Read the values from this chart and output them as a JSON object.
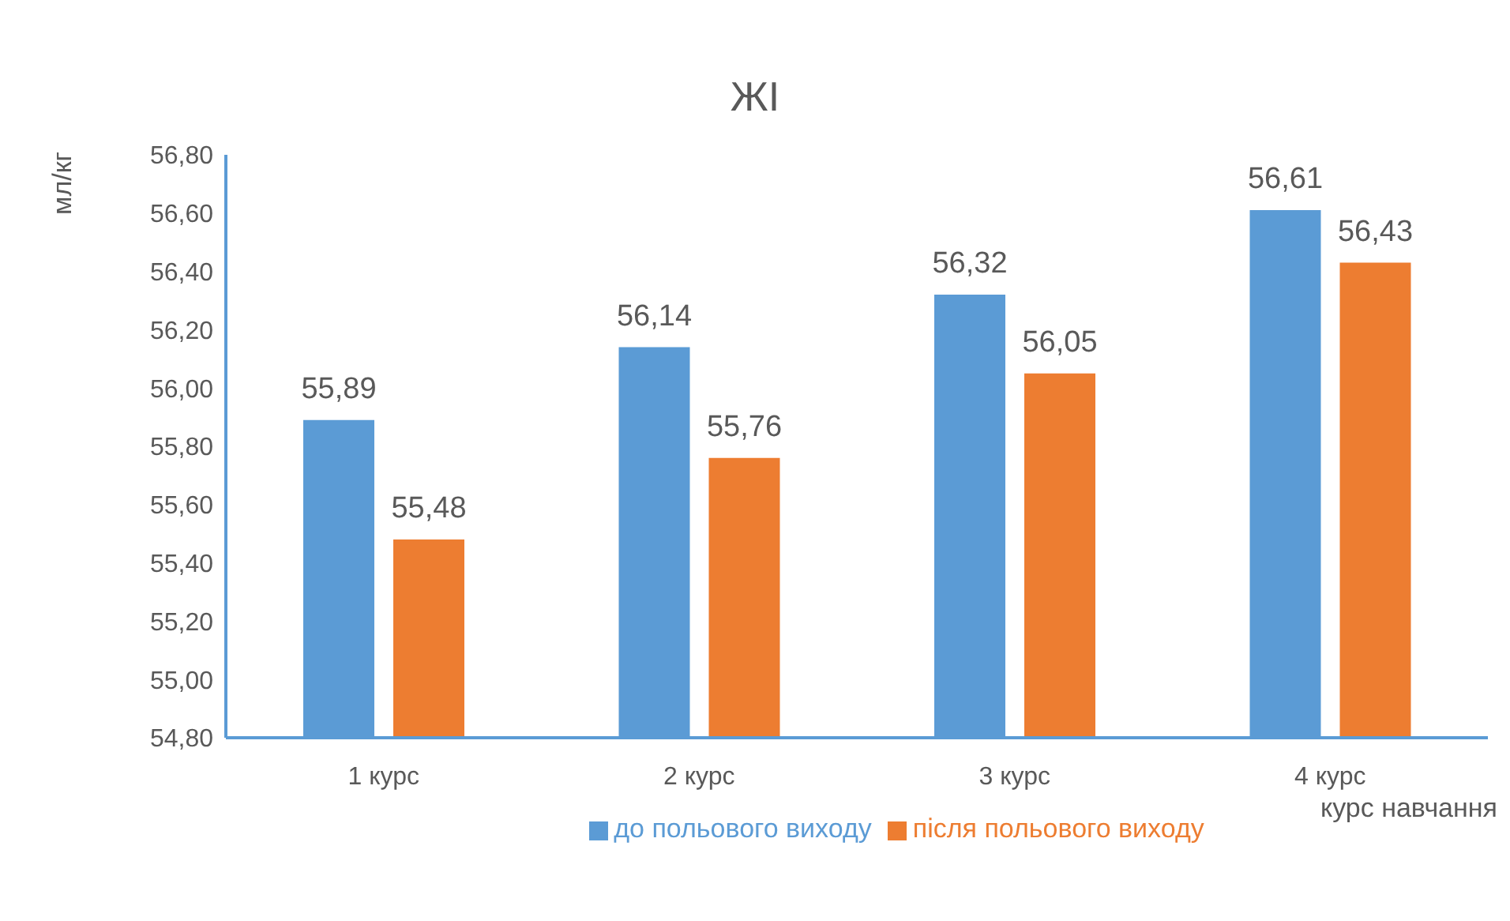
{
  "chart_data": {
    "type": "bar",
    "title": "ЖІ",
    "ylabel": "мл/кг",
    "xlabel": "курс навчання",
    "categories": [
      "1 курс",
      "2 курс",
      "3 курс",
      "4 курс"
    ],
    "series": [
      {
        "name": "до польового виходу",
        "color": "#5b9bd5",
        "values": [
          55.89,
          56.14,
          56.32,
          56.61
        ],
        "value_labels": [
          "55,89",
          "56,14",
          "56,32",
          "56,61"
        ]
      },
      {
        "name": "після польового виходу",
        "color": "#ed7d31",
        "values": [
          55.48,
          55.76,
          56.05,
          56.43
        ],
        "value_labels": [
          "55,48",
          "55,76",
          "56,05",
          "56,43"
        ]
      }
    ],
    "ylim": [
      54.8,
      56.8
    ],
    "yticks": [
      {
        "value": 54.8,
        "label": "54,80"
      },
      {
        "value": 55,
        "label": "55,00"
      },
      {
        "value": 55.2,
        "label": "55,20"
      },
      {
        "value": 55.4,
        "label": "55,40"
      },
      {
        "value": 55.6,
        "label": "55,60"
      },
      {
        "value": 55.8,
        "label": "55,80"
      },
      {
        "value": 56,
        "label": "56,00"
      },
      {
        "value": 56.2,
        "label": "56,20"
      },
      {
        "value": 56.4,
        "label": "56,40"
      },
      {
        "value": 56.6,
        "label": "56,60"
      },
      {
        "value": 56.8,
        "label": "56,80"
      }
    ],
    "grid": false,
    "legend": "bottom"
  }
}
